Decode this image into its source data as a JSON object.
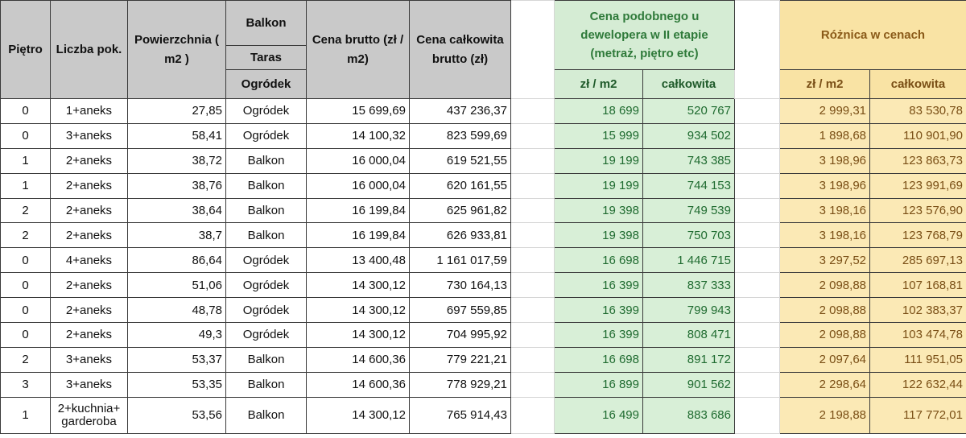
{
  "headers": {
    "pietro": "Piętro",
    "liczba": "Liczba pok.",
    "powierzchnia": "Powierzchnia ( m2 )",
    "balkon": "Balkon",
    "taras": "Taras",
    "ogrodek": "Ogródek",
    "cena_brutto": "Cena brutto (zł / m2)",
    "cena_calkowita": "Cena całkowita brutto (zł)",
    "cena_podobnego": "Cena podobnego u dewelopera w II etapie (metraż, piętro etc)",
    "zl_m2_green": "zł / m2",
    "calkowita_green": "całkowita",
    "roznica": "Różnica w cenach",
    "zl_m2_yellow": "zł / m2",
    "calkowita_yellow": "całkowita"
  },
  "rows": [
    [
      "0",
      "1+aneks",
      "27,85",
      "Ogródek",
      "15 699,69",
      "437 236,37",
      "18 699",
      "520 767",
      "2 999,31",
      "83 530,78"
    ],
    [
      "0",
      "3+aneks",
      "58,41",
      "Ogródek",
      "14 100,32",
      "823 599,69",
      "15 999",
      "934 502",
      "1 898,68",
      "110 901,90"
    ],
    [
      "1",
      "2+aneks",
      "38,72",
      "Balkon",
      "16 000,04",
      "619 521,55",
      "19 199",
      "743 385",
      "3 198,96",
      "123 863,73"
    ],
    [
      "1",
      "2+aneks",
      "38,76",
      "Balkon",
      "16 000,04",
      "620 161,55",
      "19 199",
      "744 153",
      "3 198,96",
      "123 991,69"
    ],
    [
      "2",
      "2+aneks",
      "38,64",
      "Balkon",
      "16 199,84",
      "625 961,82",
      "19 398",
      "749 539",
      "3 198,16",
      "123 576,90"
    ],
    [
      "2",
      "2+aneks",
      "38,7",
      "Balkon",
      "16 199,84",
      "626 933,81",
      "19 398",
      "750 703",
      "3 198,16",
      "123 768,79"
    ],
    [
      "0",
      "4+aneks",
      "86,64",
      "Ogródek",
      "13 400,48",
      "1 161 017,59",
      "16 698",
      "1 446 715",
      "3 297,52",
      "285 697,13"
    ],
    [
      "0",
      "2+aneks",
      "51,06",
      "Ogródek",
      "14 300,12",
      "730 164,13",
      "16 399",
      "837 333",
      "2 098,88",
      "107 168,81"
    ],
    [
      "0",
      "2+aneks",
      "48,78",
      "Ogródek",
      "14 300,12",
      "697 559,85",
      "16 399",
      "799 943",
      "2 098,88",
      "102 383,37"
    ],
    [
      "0",
      "2+aneks",
      "49,3",
      "Ogródek",
      "14 300,12",
      "704 995,92",
      "16 399",
      "808 471",
      "2 098,88",
      "103 474,78"
    ],
    [
      "2",
      "3+aneks",
      "53,37",
      "Balkon",
      "14 600,36",
      "779 221,21",
      "16 698",
      "891 172",
      "2 097,64",
      "111 951,05"
    ],
    [
      "3",
      "3+aneks",
      "53,35",
      "Balkon",
      "14 600,36",
      "778 929,21",
      "16 899",
      "901 562",
      "2 298,64",
      "122 632,44"
    ],
    [
      "1",
      "2+kuchnia+ garderoba",
      "53,56",
      "Balkon",
      "14 300,12",
      "765 914,43",
      "16 499",
      "883 686",
      "2 198,88",
      "117 772,01"
    ]
  ]
}
